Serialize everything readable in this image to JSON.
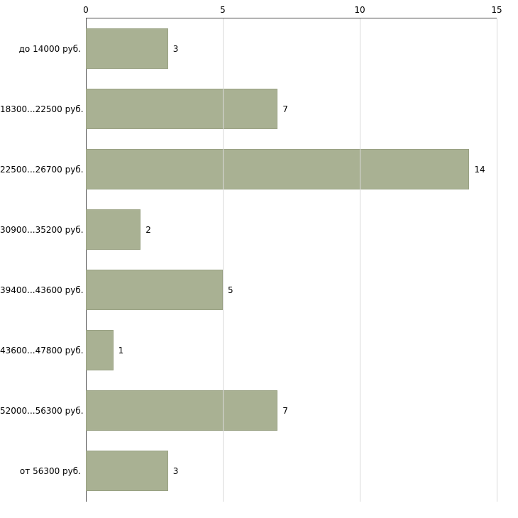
{
  "chart_data": {
    "type": "bar",
    "orientation": "horizontal",
    "title": "",
    "xlabel": "",
    "ylabel": "",
    "categories": [
      "до 14000 руб.",
      "18300...22500 руб.",
      "22500...26700 руб.",
      "30900...35200 руб.",
      "39400...43600 руб.",
      "43600...47800 руб.",
      "52000...56300 руб.",
      "от 56300 руб."
    ],
    "values": [
      3,
      7,
      14,
      2,
      5,
      1,
      7,
      3
    ],
    "xlim": [
      0,
      15
    ],
    "x_ticks": [
      0,
      5,
      10,
      15
    ],
    "x_axis_position": "top",
    "grid": true,
    "value_labels": true,
    "bar_color": "#a9b193",
    "bar_border_color": "#99a183",
    "axis_color": "#4d4d4d",
    "grid_color": "#d9d9d9",
    "background_color": "#ffffff"
  }
}
